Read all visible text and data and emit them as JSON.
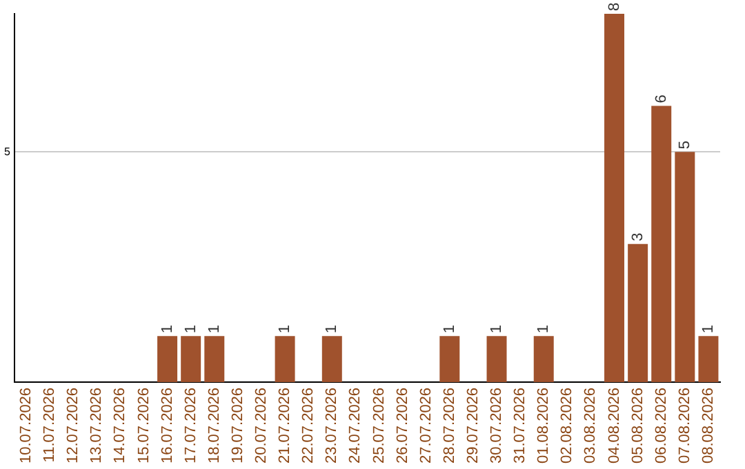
{
  "chart_data": {
    "type": "bar",
    "categories": [
      "10.07.2026",
      "11.07.2026",
      "12.07.2026",
      "13.07.2026",
      "14.07.2026",
      "15.07.2026",
      "16.07.2026",
      "17.07.2026",
      "18.07.2026",
      "19.07.2026",
      "20.07.2026",
      "21.07.2026",
      "22.07.2026",
      "23.07.2026",
      "24.07.2026",
      "25.07.2026",
      "26.07.2026",
      "27.07.2026",
      "28.07.2026",
      "29.07.2026",
      "30.07.2026",
      "31.07.2026",
      "01.08.2026",
      "02.08.2026",
      "03.08.2026",
      "04.08.2026",
      "05.08.2026",
      "06.08.2026",
      "07.08.2026",
      "08.08.2026"
    ],
    "values": [
      0,
      0,
      0,
      0,
      0,
      0,
      1,
      1,
      1,
      0,
      0,
      1,
      0,
      1,
      0,
      0,
      0,
      0,
      1,
      0,
      1,
      0,
      1,
      0,
      0,
      8,
      3,
      6,
      5,
      1
    ],
    "value_labels": [
      null,
      null,
      null,
      null,
      null,
      null,
      "1",
      "1",
      "1",
      null,
      null,
      "1",
      null,
      "1",
      null,
      null,
      null,
      null,
      "1",
      null,
      "1",
      null,
      "1",
      null,
      null,
      "8",
      "3",
      "6",
      "5",
      "1"
    ],
    "color": "#a0522d",
    "ylim": [
      0,
      8
    ],
    "yticks": [
      5
    ],
    "grid": "y",
    "legend": false
  }
}
